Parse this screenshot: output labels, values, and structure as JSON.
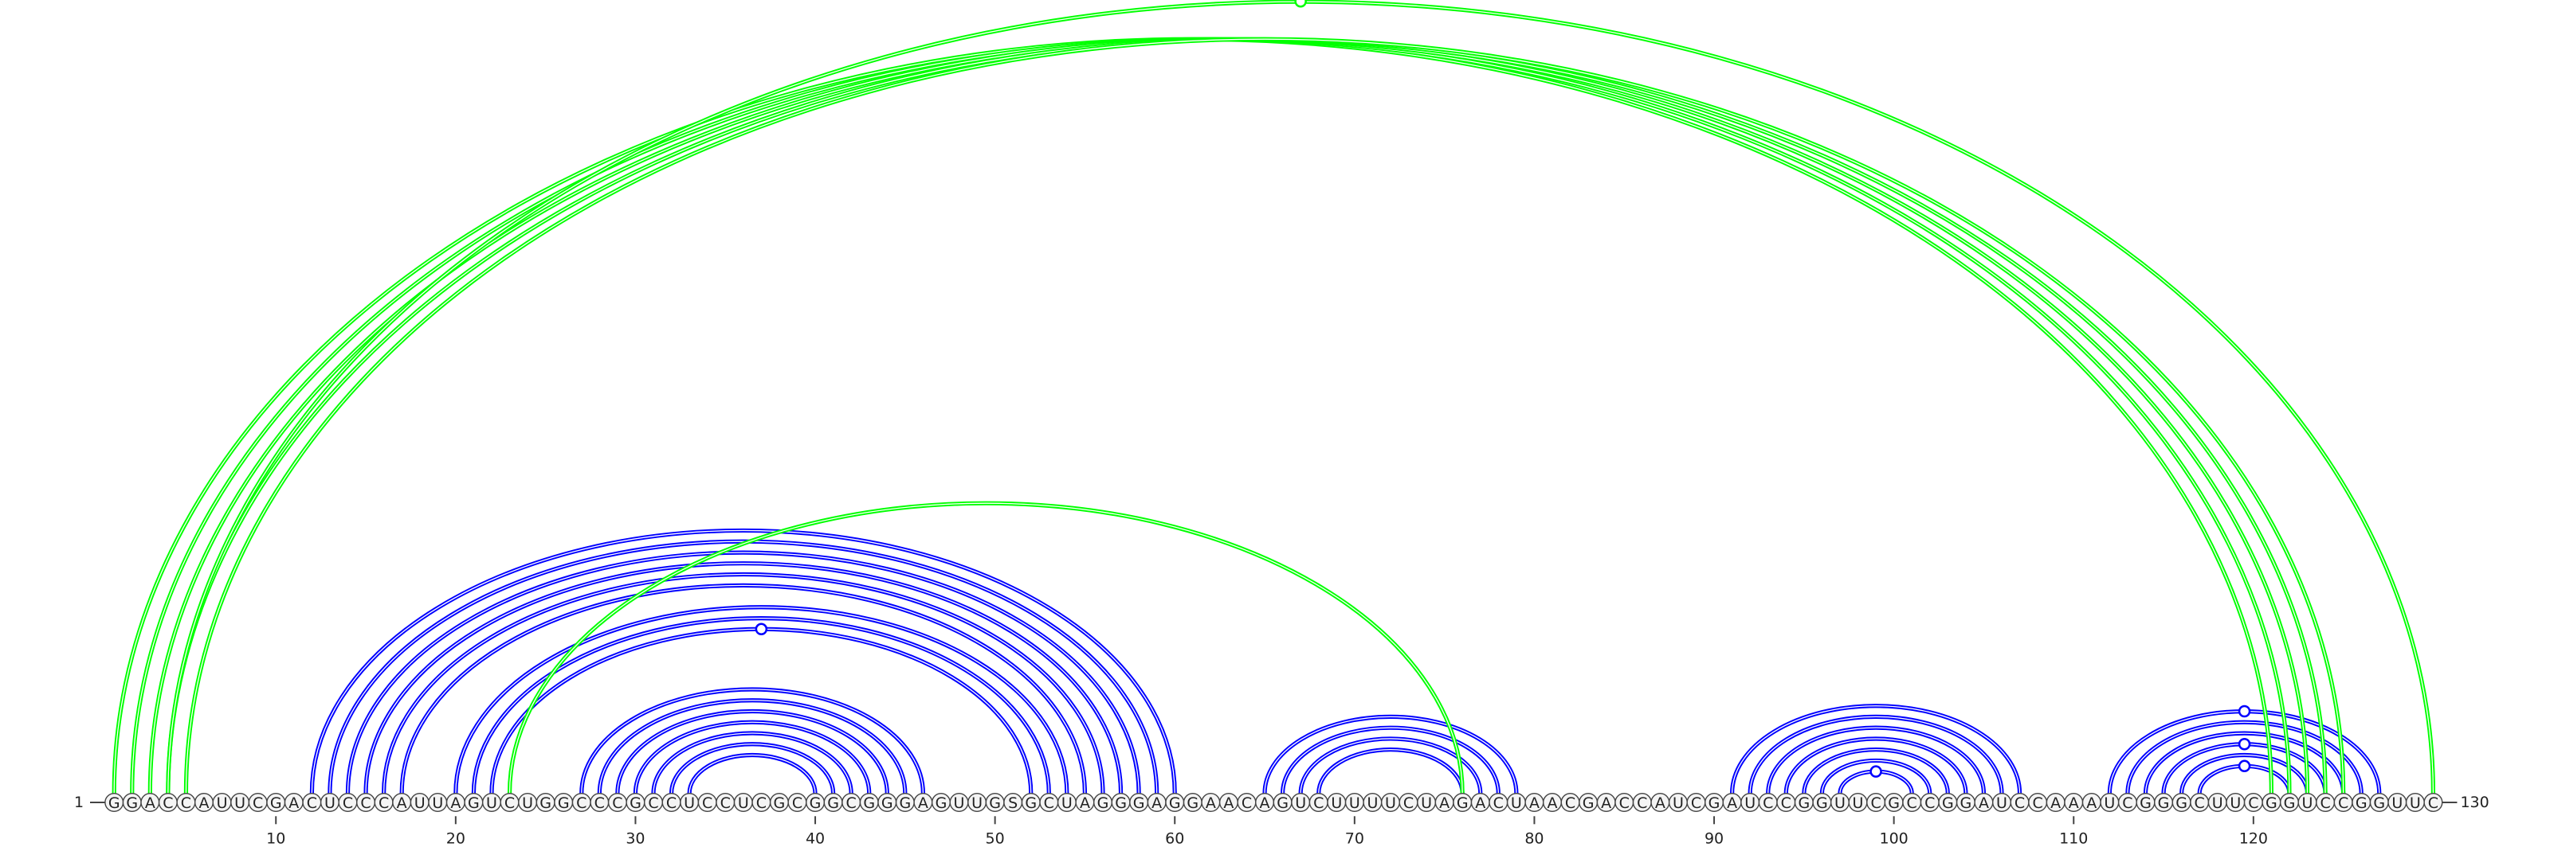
{
  "sequence": "GGACCAUUCGACUCCCAUUAGUCUGGCCCGCCUCCUCGCGGCGGGAGUUGSGCUAGGGAGGAACAGUCUUUUCUAGACUAACGACCAUCGAUCCGGUUCGCCGGAUCCAAAUCGGGCUUCGGUCCGGUUC",
  "start_label": "1",
  "end_label": "130",
  "ticks": [
    "10",
    "20",
    "30",
    "40",
    "50",
    "60",
    "70",
    "80",
    "90",
    "100",
    "110",
    "120"
  ],
  "colors": {
    "nested_pairs": "#0000ff",
    "crossing_pairs": "#00ff00"
  },
  "helices": [
    {
      "color": "nested",
      "pairs": [
        [
          12,
          60
        ],
        [
          13,
          59
        ],
        [
          14,
          58
        ],
        [
          15,
          57
        ],
        [
          16,
          56
        ],
        [
          17,
          55
        ]
      ]
    },
    {
      "color": "nested",
      "pairs": [
        [
          20,
          54
        ],
        [
          21,
          53
        ],
        [
          22,
          52
        ]
      ]
    },
    {
      "color": "nested",
      "pairs": [
        [
          27,
          46
        ],
        [
          28,
          45
        ],
        [
          29,
          44
        ],
        [
          30,
          43
        ],
        [
          31,
          42
        ],
        [
          32,
          41
        ],
        [
          33,
          40
        ]
      ]
    },
    {
      "color": "nested",
      "pairs": [
        [
          65,
          79
        ],
        [
          66,
          78
        ],
        [
          67,
          77
        ],
        [
          68,
          76
        ]
      ]
    },
    {
      "color": "nested",
      "pairs": [
        [
          91,
          107
        ],
        [
          92,
          106
        ],
        [
          93,
          105
        ],
        [
          94,
          104
        ],
        [
          95,
          103
        ],
        [
          96,
          102
        ],
        [
          97,
          101
        ]
      ]
    },
    {
      "color": "nested",
      "pairs": [
        [
          112,
          127
        ],
        [
          113,
          126
        ],
        [
          114,
          125
        ],
        [
          115,
          124
        ],
        [
          116,
          123
        ],
        [
          117,
          122
        ]
      ]
    },
    {
      "color": "crossing",
      "pairs": [
        [
          1,
          121
        ],
        [
          2,
          122
        ],
        [
          3,
          123
        ],
        [
          4,
          124
        ],
        [
          5,
          125
        ]
      ]
    },
    {
      "color": "crossing",
      "pairs": [
        [
          4,
          130
        ]
      ]
    },
    {
      "color": "crossing",
      "pairs": [
        [
          23,
          76
        ]
      ]
    }
  ],
  "loop_markers": [
    {
      "color": "crossing",
      "pair": [
        4,
        130
      ]
    },
    {
      "color": "nested",
      "pair": [
        22,
        52
      ]
    },
    {
      "color": "nested",
      "pair": [
        97,
        101
      ]
    },
    {
      "color": "nested",
      "pair": [
        112,
        127
      ]
    },
    {
      "color": "nested",
      "pair": [
        115,
        124
      ]
    },
    {
      "color": "nested",
      "pair": [
        117,
        122
      ]
    }
  ]
}
